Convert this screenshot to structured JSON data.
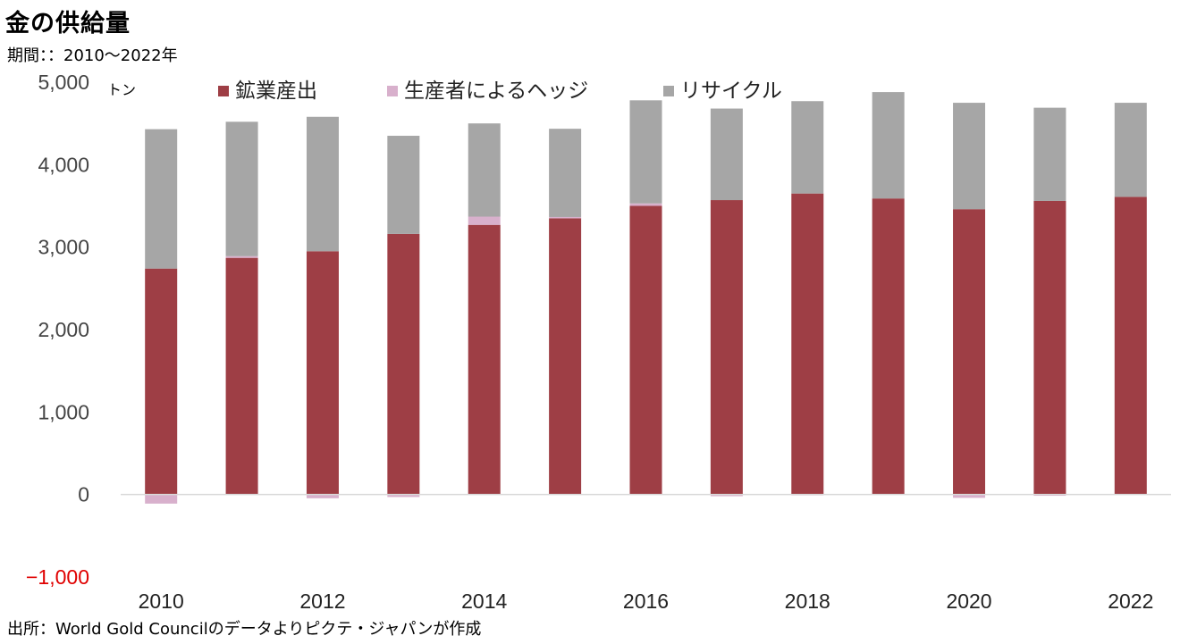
{
  "title": "金の供給量",
  "subtitle": "期間：：2010〜2022年",
  "source": "出所：World Gold Councilのデータよりピクテ・ジャパンが作成",
  "chart_data": {
    "type": "bar",
    "stacked": true,
    "unit_label": "トン",
    "x": [
      2010,
      2011,
      2012,
      2013,
      2014,
      2015,
      2016,
      2017,
      2018,
      2019,
      2020,
      2021,
      2022
    ],
    "x_tick_labels": [
      "2010",
      "2012",
      "2014",
      "2016",
      "2018",
      "2020",
      "2022"
    ],
    "y_tick_labels": [
      "5,000",
      "4,000",
      "3,000",
      "2,000",
      "1,000",
      "0",
      "−1,000"
    ],
    "ylim": [
      -1000,
      5000
    ],
    "legend_position": "top",
    "grid": false,
    "series": [
      {
        "name": "鉱業産出",
        "color": "#9e3e45",
        "values": [
          2740,
          2870,
          2950,
          3160,
          3270,
          3350,
          3500,
          3570,
          3650,
          3590,
          3460,
          3560,
          3610
        ]
      },
      {
        "name": "生産者によるヘッジ",
        "color": "#d8b0cc",
        "values": [
          -110,
          20,
          -45,
          -30,
          100,
          15,
          30,
          -20,
          -10,
          0,
          -40,
          -15,
          0
        ]
      },
      {
        "name": "リサイクル",
        "color": "#a6a6a6",
        "values": [
          1690,
          1630,
          1630,
          1190,
          1130,
          1070,
          1250,
          1110,
          1120,
          1290,
          1290,
          1130,
          1140
        ]
      }
    ]
  }
}
